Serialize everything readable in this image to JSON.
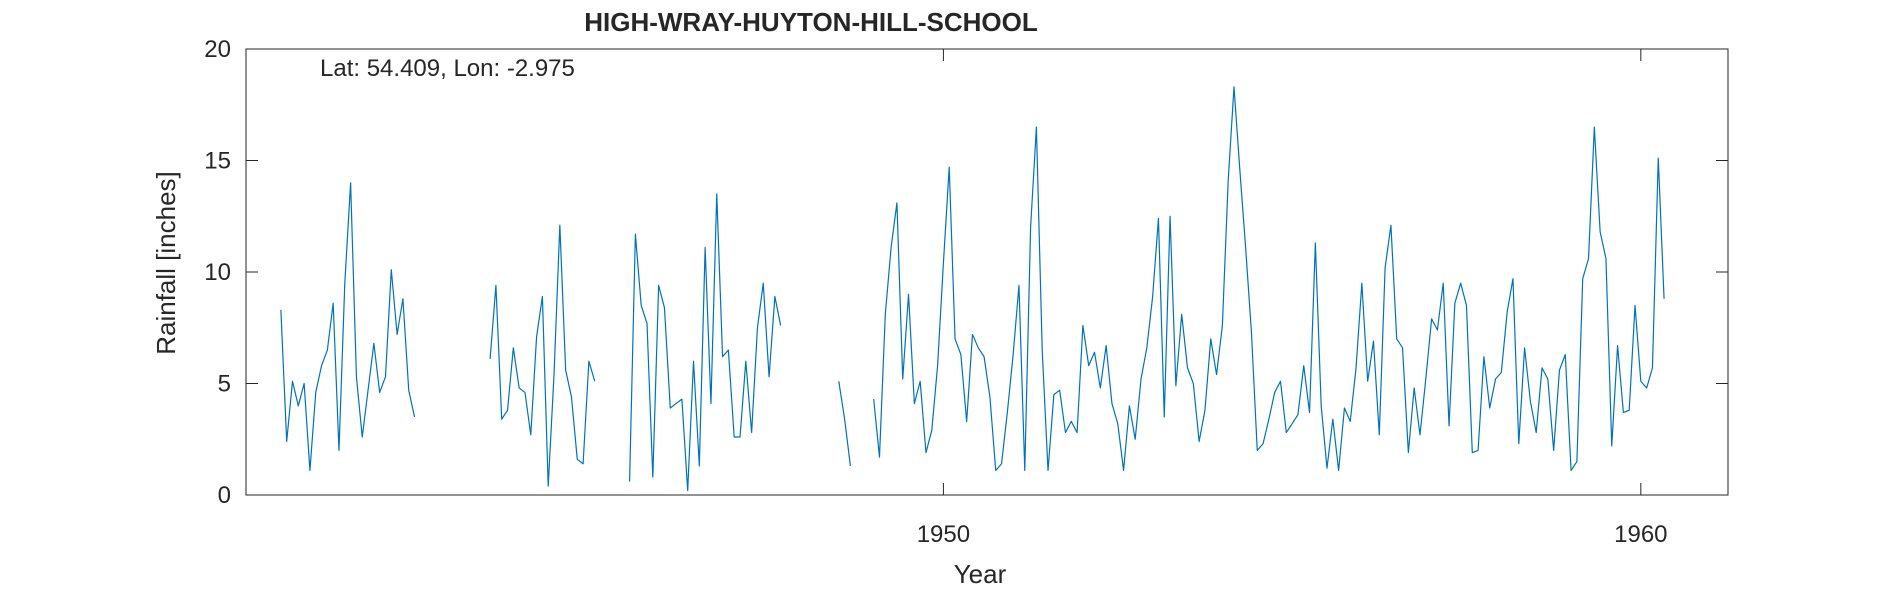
{
  "chart_data": {
    "type": "line",
    "title": "HIGH-WRAY-HUYTON-HILL-SCHOOL",
    "annotation": "Lat: 54.409, Lon: -2.975",
    "xlabel": "Year",
    "ylabel": "Rainfall [inches]",
    "xlim": [
      1940.0,
      1961.25
    ],
    "ylim": [
      0,
      20
    ],
    "xticks": [
      1950,
      1960
    ],
    "yticks": [
      0,
      5,
      10,
      15,
      20
    ],
    "grid": false,
    "box": true,
    "series": [
      {
        "color": "#0072BD",
        "segments": [
          {
            "start": 1940.5,
            "values": [
              8.3,
              2.4,
              5.1,
              4.0,
              5.0,
              1.1,
              4.6,
              5.8,
              6.5,
              8.6,
              2.0,
              9.5,
              14.0,
              5.3,
              2.6,
              4.7,
              6.8,
              4.6,
              5.3,
              10.1,
              7.2,
              8.8,
              4.7,
              3.5
            ]
          },
          {
            "start": 1943.5,
            "values": [
              6.1,
              9.4,
              3.4,
              3.8,
              6.6,
              4.8,
              4.6,
              2.7,
              7.1,
              8.9,
              0.4,
              5.4,
              12.1,
              5.6,
              4.4,
              1.6,
              1.4,
              6.0,
              5.1
            ]
          },
          {
            "start": 1945.5,
            "values": [
              0.6,
              11.7,
              8.5,
              7.7,
              0.8,
              9.4,
              8.4,
              3.9,
              4.1,
              4.3,
              0.2,
              6.0,
              1.3,
              11.1,
              4.1,
              13.5,
              6.2,
              6.5,
              2.6,
              2.6,
              6.0,
              2.8,
              7.5,
              9.5,
              5.3,
              8.9,
              7.6
            ]
          },
          {
            "start": 1948.5,
            "values": [
              5.1,
              3.4,
              1.3
            ]
          },
          {
            "start": 1949.0,
            "values": [
              4.3,
              1.7,
              8.1,
              11.1,
              13.1,
              5.2,
              9.0,
              4.1,
              5.1,
              1.9,
              2.9,
              5.8,
              10.4,
              14.7,
              7.0,
              6.3,
              3.3,
              7.2,
              6.6,
              6.2,
              4.4,
              1.1,
              1.4,
              3.7,
              6.3,
              9.4,
              1.1,
              12.0,
              16.5,
              6.5,
              1.1,
              4.5,
              4.7,
              2.8,
              3.3,
              2.8,
              7.6,
              5.8,
              6.4,
              4.8,
              6.7,
              4.1,
              3.2,
              1.1,
              4.0,
              2.5,
              5.2,
              6.6,
              8.9,
              12.4,
              3.5,
              12.5,
              4.9,
              8.1,
              5.7,
              5.0,
              2.4,
              3.8,
              7.0,
              5.4,
              7.6,
              14.1,
              18.3,
              14.6,
              11.1,
              7.3,
              2.0,
              2.3,
              3.4,
              4.6,
              5.1,
              2.8,
              3.2,
              3.6,
              5.8,
              3.7,
              11.3,
              4.0,
              1.2,
              3.4,
              1.1,
              3.9,
              3.3,
              5.7,
              9.5,
              5.1,
              6.9,
              2.7,
              10.2,
              12.1,
              7.0,
              6.6,
              1.9,
              4.8,
              2.7,
              5.2,
              7.9,
              7.4,
              9.5,
              3.1,
              8.6,
              9.5,
              8.5,
              1.9,
              2.0,
              6.2,
              3.9,
              5.2,
              5.5,
              8.2,
              9.7,
              2.3,
              6.6,
              4.2,
              2.8,
              5.7,
              5.2,
              2.0,
              5.6,
              6.3,
              1.1,
              1.5,
              9.7,
              10.6,
              16.5,
              11.8,
              10.6,
              2.2,
              6.7,
              3.7,
              3.8,
              8.5,
              5.1,
              4.8,
              5.7,
              15.1,
              8.8
            ]
          }
        ]
      }
    ]
  }
}
